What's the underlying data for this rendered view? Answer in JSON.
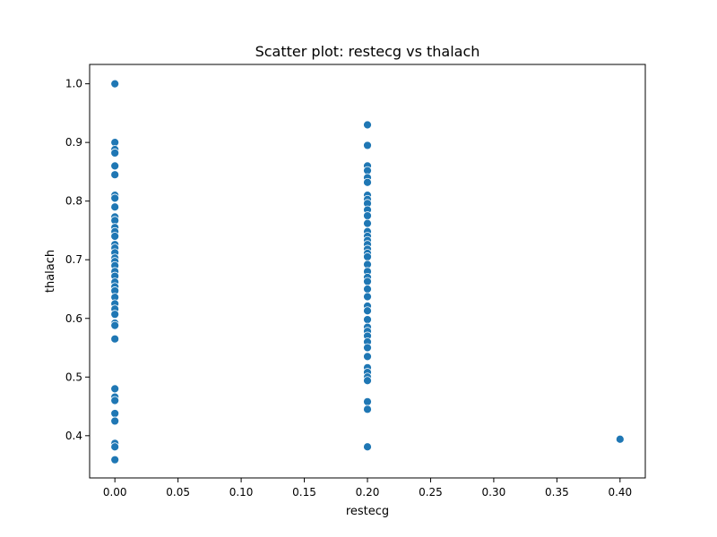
{
  "chart_data": {
    "type": "scatter",
    "title": "Scatter plot: restecg vs thalach",
    "xlabel": "restecg",
    "ylabel": "thalach",
    "xlim": [
      -0.02,
      0.42
    ],
    "ylim": [
      0.328,
      1.033
    ],
    "xticks": [
      0.0,
      0.05,
      0.1,
      0.15,
      0.2,
      0.25,
      0.3,
      0.35,
      0.4
    ],
    "xtick_labels": [
      "0.00",
      "0.05",
      "0.10",
      "0.15",
      "0.20",
      "0.25",
      "0.30",
      "0.35",
      "0.40"
    ],
    "yticks": [
      0.4,
      0.5,
      0.6,
      0.7,
      0.8,
      0.9,
      1.0
    ],
    "ytick_labels": [
      "0.4",
      "0.5",
      "0.6",
      "0.7",
      "0.8",
      "0.9",
      "1.0"
    ],
    "grid": false,
    "marker_color": "#1f77b4",
    "series": [
      {
        "points": [
          [
            0.0,
            1.0
          ],
          [
            0.0,
            0.9
          ],
          [
            0.0,
            0.888
          ],
          [
            0.0,
            0.882
          ],
          [
            0.0,
            0.86
          ],
          [
            0.0,
            0.845
          ],
          [
            0.0,
            0.81
          ],
          [
            0.0,
            0.805
          ],
          [
            0.0,
            0.79
          ],
          [
            0.0,
            0.773
          ],
          [
            0.0,
            0.767
          ],
          [
            0.0,
            0.755
          ],
          [
            0.0,
            0.748
          ],
          [
            0.0,
            0.74
          ],
          [
            0.0,
            0.726
          ],
          [
            0.0,
            0.72
          ],
          [
            0.0,
            0.712
          ],
          [
            0.0,
            0.703
          ],
          [
            0.0,
            0.697
          ],
          [
            0.0,
            0.69
          ],
          [
            0.0,
            0.68
          ],
          [
            0.0,
            0.672
          ],
          [
            0.0,
            0.662
          ],
          [
            0.0,
            0.654
          ],
          [
            0.0,
            0.647
          ],
          [
            0.0,
            0.636
          ],
          [
            0.0,
            0.625
          ],
          [
            0.0,
            0.616
          ],
          [
            0.0,
            0.607
          ],
          [
            0.0,
            0.592
          ],
          [
            0.0,
            0.588
          ],
          [
            0.0,
            0.565
          ],
          [
            0.0,
            0.48
          ],
          [
            0.0,
            0.466
          ],
          [
            0.0,
            0.46
          ],
          [
            0.0,
            0.438
          ],
          [
            0.0,
            0.425
          ],
          [
            0.0,
            0.387
          ],
          [
            0.0,
            0.381
          ],
          [
            0.0,
            0.359
          ],
          [
            0.2,
            0.93
          ],
          [
            0.2,
            0.895
          ],
          [
            0.2,
            0.86
          ],
          [
            0.2,
            0.852
          ],
          [
            0.2,
            0.84
          ],
          [
            0.2,
            0.832
          ],
          [
            0.2,
            0.81
          ],
          [
            0.2,
            0.803
          ],
          [
            0.2,
            0.796
          ],
          [
            0.2,
            0.785
          ],
          [
            0.2,
            0.775
          ],
          [
            0.2,
            0.762
          ],
          [
            0.2,
            0.748
          ],
          [
            0.2,
            0.74
          ],
          [
            0.2,
            0.733
          ],
          [
            0.2,
            0.726
          ],
          [
            0.2,
            0.718
          ],
          [
            0.2,
            0.711
          ],
          [
            0.2,
            0.705
          ],
          [
            0.2,
            0.692
          ],
          [
            0.2,
            0.68
          ],
          [
            0.2,
            0.67
          ],
          [
            0.2,
            0.663
          ],
          [
            0.2,
            0.65
          ],
          [
            0.2,
            0.637
          ],
          [
            0.2,
            0.621
          ],
          [
            0.2,
            0.613
          ],
          [
            0.2,
            0.598
          ],
          [
            0.2,
            0.585
          ],
          [
            0.2,
            0.578
          ],
          [
            0.2,
            0.57
          ],
          [
            0.2,
            0.56
          ],
          [
            0.2,
            0.55
          ],
          [
            0.2,
            0.535
          ],
          [
            0.2,
            0.516
          ],
          [
            0.2,
            0.508
          ],
          [
            0.2,
            0.5
          ],
          [
            0.2,
            0.494
          ],
          [
            0.2,
            0.458
          ],
          [
            0.2,
            0.445
          ],
          [
            0.2,
            0.381
          ],
          [
            0.4,
            0.394
          ]
        ]
      }
    ]
  }
}
